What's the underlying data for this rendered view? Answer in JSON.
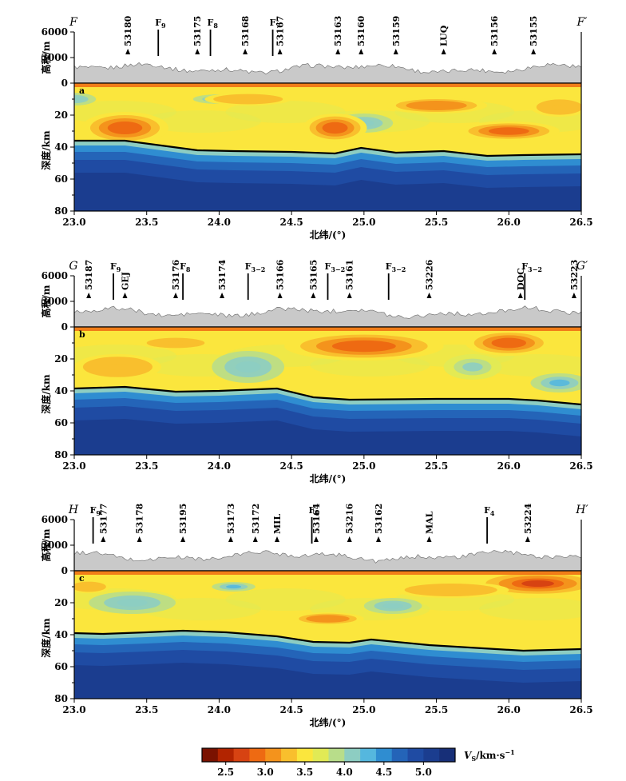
{
  "chart_data": [
    {
      "type": "heatmap",
      "panel_label": "a",
      "profile_start": "F",
      "profile_end": "F′",
      "xlabel": "北纬/(°)",
      "ylabel_top": "高程/m",
      "ylabel_bottom": "深度/km",
      "xlim": [
        23.0,
        26.5
      ],
      "xticks": [
        "23.0",
        "23.5",
        "24.0",
        "24.5",
        "25.0",
        "25.5",
        "26.0",
        "26.5"
      ],
      "elev_lim": [
        0,
        6000
      ],
      "elev_ticks": [
        "0",
        "3000",
        "6000"
      ],
      "depth_lim": [
        0,
        80
      ],
      "depth_ticks": [
        "20",
        "40",
        "60",
        "80"
      ],
      "stations": [
        {
          "name": "53180",
          "lat": 23.37
        },
        {
          "name": "53175",
          "lat": 23.85
        },
        {
          "name": "53168",
          "lat": 24.18
        },
        {
          "name": "53167",
          "lat": 24.42
        },
        {
          "name": "53163",
          "lat": 24.82
        },
        {
          "name": "53160",
          "lat": 24.98
        },
        {
          "name": "53159",
          "lat": 25.22
        },
        {
          "name": "LUQ",
          "lat": 25.55
        },
        {
          "name": "53156",
          "lat": 25.9
        },
        {
          "name": "53155",
          "lat": 26.17
        }
      ],
      "faults": [
        {
          "name": "F",
          "sub": "9",
          "lat": 23.58
        },
        {
          "name": "F",
          "sub": "8",
          "lat": 23.94
        },
        {
          "name": "F",
          "sub": "7",
          "lat": 24.37
        }
      ],
      "moho": [
        [
          23.0,
          36
        ],
        [
          23.35,
          36
        ],
        [
          23.6,
          39
        ],
        [
          23.85,
          42
        ],
        [
          24.1,
          42.5
        ],
        [
          24.5,
          43
        ],
        [
          24.8,
          44
        ],
        [
          24.98,
          40.5
        ],
        [
          25.22,
          43.5
        ],
        [
          25.55,
          42.5
        ],
        [
          25.85,
          45.5
        ],
        [
          26.1,
          45
        ],
        [
          26.5,
          44.5
        ]
      ],
      "slow_zones": [
        {
          "lat": 23.35,
          "depth": 28,
          "rx": 0.3,
          "ry": 10,
          "vs": 3.0
        },
        {
          "lat": 24.8,
          "depth": 28,
          "rx": 0.22,
          "ry": 9,
          "vs": 2.9
        },
        {
          "lat": 25.5,
          "depth": 14,
          "rx": 0.35,
          "ry": 5,
          "vs": 3.1
        },
        {
          "lat": 26.0,
          "depth": 30,
          "rx": 0.35,
          "ry": 6,
          "vs": 3.0
        },
        {
          "lat": 26.35,
          "depth": 15,
          "rx": 0.2,
          "ry": 6,
          "vs": 3.2
        },
        {
          "lat": 24.2,
          "depth": 10,
          "rx": 0.3,
          "ry": 4,
          "vs": 3.3
        }
      ],
      "fast_zones": [
        {
          "lat": 24.0,
          "depth": 10,
          "rx": 0.18,
          "ry": 3,
          "vs": 4.0
        },
        {
          "lat": 25.0,
          "depth": 25,
          "rx": 0.2,
          "ry": 6,
          "vs": 3.9
        },
        {
          "lat": 23.0,
          "depth": 10,
          "rx": 0.15,
          "ry": 4,
          "vs": 3.9
        }
      ]
    },
    {
      "type": "heatmap",
      "panel_label": "b",
      "profile_start": "G",
      "profile_end": "G′",
      "xlabel": "北纬/(°)",
      "ylabel_top": "高程/m",
      "ylabel_bottom": "深度/km",
      "xlim": [
        23.0,
        26.5
      ],
      "xticks": [
        "23.0",
        "23.5",
        "24.0",
        "24.5",
        "25.0",
        "25.5",
        "26.0",
        "26.5"
      ],
      "elev_lim": [
        0,
        6000
      ],
      "elev_ticks": [
        "0",
        "3000",
        "6000"
      ],
      "depth_lim": [
        0,
        80
      ],
      "depth_ticks": [
        "20",
        "40",
        "60",
        "80"
      ],
      "stations": [
        {
          "name": "53187",
          "lat": 23.1
        },
        {
          "name": "GEJ",
          "lat": 23.35
        },
        {
          "name": "53176",
          "lat": 23.7
        },
        {
          "name": "53174",
          "lat": 24.02
        },
        {
          "name": "53166",
          "lat": 24.42
        },
        {
          "name": "53165",
          "lat": 24.65
        },
        {
          "name": "53161",
          "lat": 24.9
        },
        {
          "name": "53226",
          "lat": 25.45
        },
        {
          "name": "DOC",
          "lat": 26.08
        },
        {
          "name": "53223",
          "lat": 26.45
        }
      ],
      "faults": [
        {
          "name": "F",
          "sub": "9",
          "lat": 23.27
        },
        {
          "name": "F",
          "sub": "8",
          "lat": 23.75
        },
        {
          "name": "F",
          "sub": "3−2",
          "lat": 24.2
        },
        {
          "name": "F",
          "sub": "3−2",
          "lat": 24.75
        },
        {
          "name": "F",
          "sub": "3−2",
          "lat": 25.17
        },
        {
          "name": "F",
          "sub": "3−2",
          "lat": 26.11
        }
      ],
      "moho": [
        [
          23.0,
          38.5
        ],
        [
          23.35,
          37.5
        ],
        [
          23.7,
          40.5
        ],
        [
          24.0,
          40
        ],
        [
          24.4,
          38.5
        ],
        [
          24.65,
          44
        ],
        [
          24.9,
          45.5
        ],
        [
          25.5,
          45
        ],
        [
          26.0,
          45
        ],
        [
          26.2,
          46
        ],
        [
          26.5,
          48.5
        ]
      ],
      "slow_zones": [
        {
          "lat": 25.0,
          "depth": 12,
          "rx": 0.55,
          "ry": 9,
          "vs": 2.9
        },
        {
          "lat": 26.0,
          "depth": 10,
          "rx": 0.3,
          "ry": 8,
          "vs": 2.9
        },
        {
          "lat": 23.7,
          "depth": 10,
          "rx": 0.25,
          "ry": 4,
          "vs": 3.2
        },
        {
          "lat": 23.3,
          "depth": 25,
          "rx": 0.3,
          "ry": 8,
          "vs": 3.3
        }
      ],
      "fast_zones": [
        {
          "lat": 24.2,
          "depth": 25,
          "rx": 0.25,
          "ry": 10,
          "vs": 3.9
        },
        {
          "lat": 25.75,
          "depth": 25,
          "rx": 0.2,
          "ry": 8,
          "vs": 3.8
        },
        {
          "lat": 26.35,
          "depth": 35,
          "rx": 0.2,
          "ry": 6,
          "vs": 4.0
        }
      ]
    },
    {
      "type": "heatmap",
      "panel_label": "c",
      "profile_start": "H",
      "profile_end": "H′",
      "xlabel": "北纬/(°)",
      "ylabel_top": "高程/m",
      "ylabel_bottom": "深度/km",
      "xlim": [
        23.0,
        26.5
      ],
      "xticks": [
        "23.0",
        "23.5",
        "24.0",
        "24.5",
        "25.0",
        "25.5",
        "26.0",
        "26.5"
      ],
      "elev_lim": [
        0,
        6000
      ],
      "elev_ticks": [
        "0",
        "3000",
        "6000"
      ],
      "depth_lim": [
        0,
        80
      ],
      "depth_ticks": [
        "20",
        "40",
        "60",
        "80"
      ],
      "stations": [
        {
          "name": "53177",
          "lat": 23.2
        },
        {
          "name": "53178",
          "lat": 23.45
        },
        {
          "name": "53195",
          "lat": 23.75
        },
        {
          "name": "53173",
          "lat": 24.08
        },
        {
          "name": "53172",
          "lat": 24.25
        },
        {
          "name": "MIL",
          "lat": 24.4
        },
        {
          "name": "53164",
          "lat": 24.67
        },
        {
          "name": "53216",
          "lat": 24.9
        },
        {
          "name": "53162",
          "lat": 25.1
        },
        {
          "name": "MAL",
          "lat": 25.45
        },
        {
          "name": "53224",
          "lat": 26.13
        }
      ],
      "faults": [
        {
          "name": "F",
          "sub": "9",
          "lat": 23.13
        },
        {
          "name": "F",
          "sub": "6",
          "lat": 24.64
        },
        {
          "name": "F",
          "sub": "4",
          "lat": 25.85
        }
      ],
      "moho": [
        [
          23.0,
          39
        ],
        [
          23.2,
          39.5
        ],
        [
          23.5,
          38.5
        ],
        [
          23.75,
          37.5
        ],
        [
          24.05,
          38.5
        ],
        [
          24.4,
          41
        ],
        [
          24.65,
          44.5
        ],
        [
          24.9,
          45
        ],
        [
          25.05,
          43
        ],
        [
          25.45,
          46.5
        ],
        [
          26.1,
          50
        ],
        [
          26.5,
          49
        ]
      ],
      "slow_zones": [
        {
          "lat": 26.2,
          "depth": 8,
          "rx": 0.45,
          "ry": 8,
          "vs": 2.8
        },
        {
          "lat": 24.75,
          "depth": 30,
          "rx": 0.25,
          "ry": 4,
          "vs": 3.1
        },
        {
          "lat": 23.1,
          "depth": 10,
          "rx": 0.15,
          "ry": 4,
          "vs": 3.2
        },
        {
          "lat": 25.6,
          "depth": 12,
          "rx": 0.4,
          "ry": 5,
          "vs": 3.3
        }
      ],
      "fast_zones": [
        {
          "lat": 23.4,
          "depth": 20,
          "rx": 0.3,
          "ry": 7,
          "vs": 3.9
        },
        {
          "lat": 25.2,
          "depth": 22,
          "rx": 0.2,
          "ry": 5,
          "vs": 3.9
        },
        {
          "lat": 24.1,
          "depth": 10,
          "rx": 0.15,
          "ry": 3,
          "vs": 4.0
        }
      ]
    }
  ],
  "colorbar": {
    "label_main": "V",
    "label_sub": "S",
    "label_unit": "/km·s",
    "label_exp": "−1",
    "range": [
      2.2,
      5.4
    ],
    "ticks": [
      "2.5",
      "3.0",
      "3.5",
      "4.0",
      "4.5",
      "5.0"
    ],
    "colors": [
      "#7a1200",
      "#b22400",
      "#d74312",
      "#ee6a12",
      "#f4931c",
      "#f9bf2d",
      "#fbe63d",
      "#e1ea55",
      "#b8dd8a",
      "#8dcdc2",
      "#55b7de",
      "#2f8dd1",
      "#2464b8",
      "#1f4ba3",
      "#1b3d8f",
      "#172f78"
    ]
  }
}
